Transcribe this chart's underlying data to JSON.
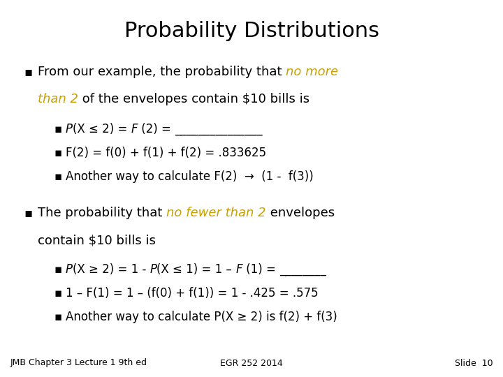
{
  "title": "Probability Distributions",
  "background_color": "#ffffff",
  "title_color": "#000000",
  "title_fontsize": 22,
  "body_fontsize": 13,
  "sub_fontsize": 12,
  "footer_fontsize": 9,
  "highlight_color": "#c8a000",
  "normal_color": "#000000",
  "footer_left": "JMB Chapter 3 Lecture 1 9th ed",
  "footer_center": "EGR 252 2014",
  "footer_right": "Slide  10"
}
